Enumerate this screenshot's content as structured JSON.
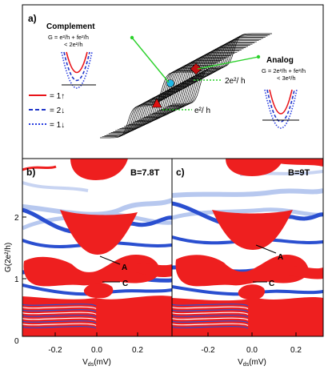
{
  "panel_a": {
    "label": "a)",
    "complement_title": "Complement",
    "complement_eq1": "G = e²/h + fe²/h",
    "complement_eq2": "< 2e²/h",
    "analog_title": "Analog",
    "analog_eq1": "G = 2e²/h + fe²/h",
    "analog_eq2": "< 3e²/h",
    "plateau_high": "2e²/ h",
    "plateau_low": "e²/ h",
    "legend": [
      {
        "text": "= 1↑",
        "color": "#e8141a",
        "style": "solid"
      },
      {
        "text": "= 2↓",
        "color": "#1f35c8",
        "style": "dashed"
      },
      {
        "text": "= 1↓",
        "color": "#2a3fe0",
        "style": "dotted"
      }
    ],
    "colors": {
      "pointer": "#2bd12b",
      "red_marker": "#e01010",
      "cyan_marker": "#1fb6e6"
    }
  },
  "panel_b": {
    "label": "b)",
    "field": "B=7.8T",
    "point_A": "A",
    "point_C": "C"
  },
  "panel_c": {
    "label": "c)",
    "field": "B=9T",
    "point_A": "A",
    "point_C": "C"
  },
  "axes": {
    "ylabel": "G(2e²/h)",
    "yticks": [
      "2",
      "1",
      "0"
    ],
    "xticks": [
      "-0.2",
      "0.0",
      "0.2"
    ],
    "xlabel": "Vₐₛ(mV)",
    "xlabel_main": "V",
    "xlabel_sub": "ds",
    "xlabel_unit": "(mV)"
  },
  "colors": {
    "map_red": "#ee1f1f",
    "map_blue": "#2a4fd0",
    "map_light_blue": "#b7c8ef"
  }
}
